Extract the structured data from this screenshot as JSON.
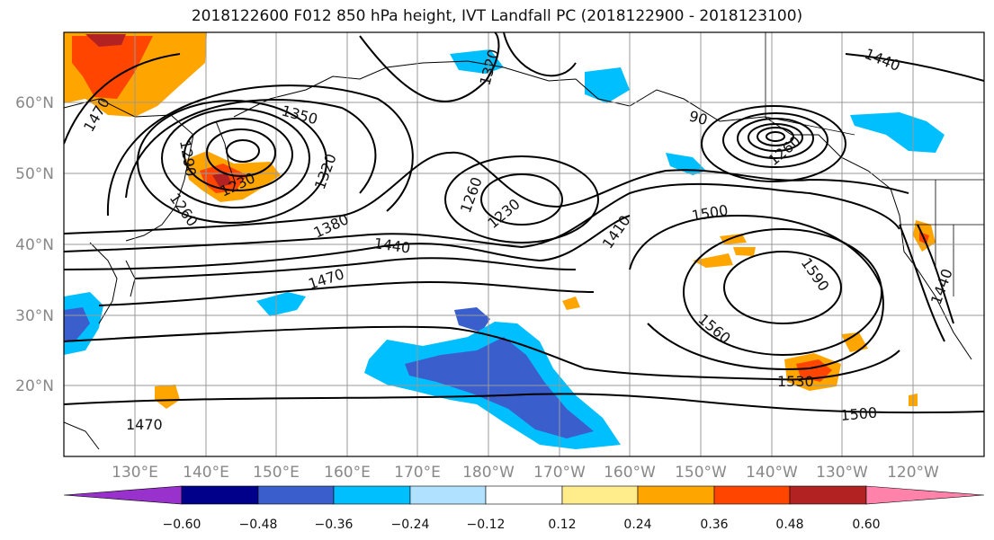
{
  "title": "2018122600 F012 850 hPa height, IVT Landfall PC (2018122900 - 2018123100)",
  "lat_labels": [
    "60°N",
    "50°N",
    "40°N",
    "30°N",
    "20°N"
  ],
  "lon_labels": [
    "130°E",
    "140°E",
    "150°E",
    "160°E",
    "170°E",
    "180°W",
    "170°W",
    "160°W",
    "150°W",
    "140°W",
    "130°W",
    "120°W"
  ],
  "contour_labels": [
    "1470",
    "1350",
    "1290",
    "1260",
    "1230",
    "1320",
    "1380",
    "1440",
    "1470",
    "1260",
    "1230",
    "1320",
    "1410",
    "1500",
    "1590",
    "1560",
    "1530",
    "1500",
    "1440",
    "1440",
    "1470",
    "1260",
    "90"
  ],
  "colorbar": {
    "ticks": [
      "−0.60",
      "−0.48",
      "−0.36",
      "−0.24",
      "−0.12",
      "0.12",
      "0.24",
      "0.36",
      "0.48",
      "0.60"
    ],
    "colors": [
      "#9932cc",
      "#00008b",
      "#3a5fcd",
      "#00bfff",
      "#b0e2ff",
      "#ffffff",
      "#ffec8b",
      "#ffa500",
      "#ff4500",
      "#b22222",
      "#ff82ab"
    ]
  }
}
